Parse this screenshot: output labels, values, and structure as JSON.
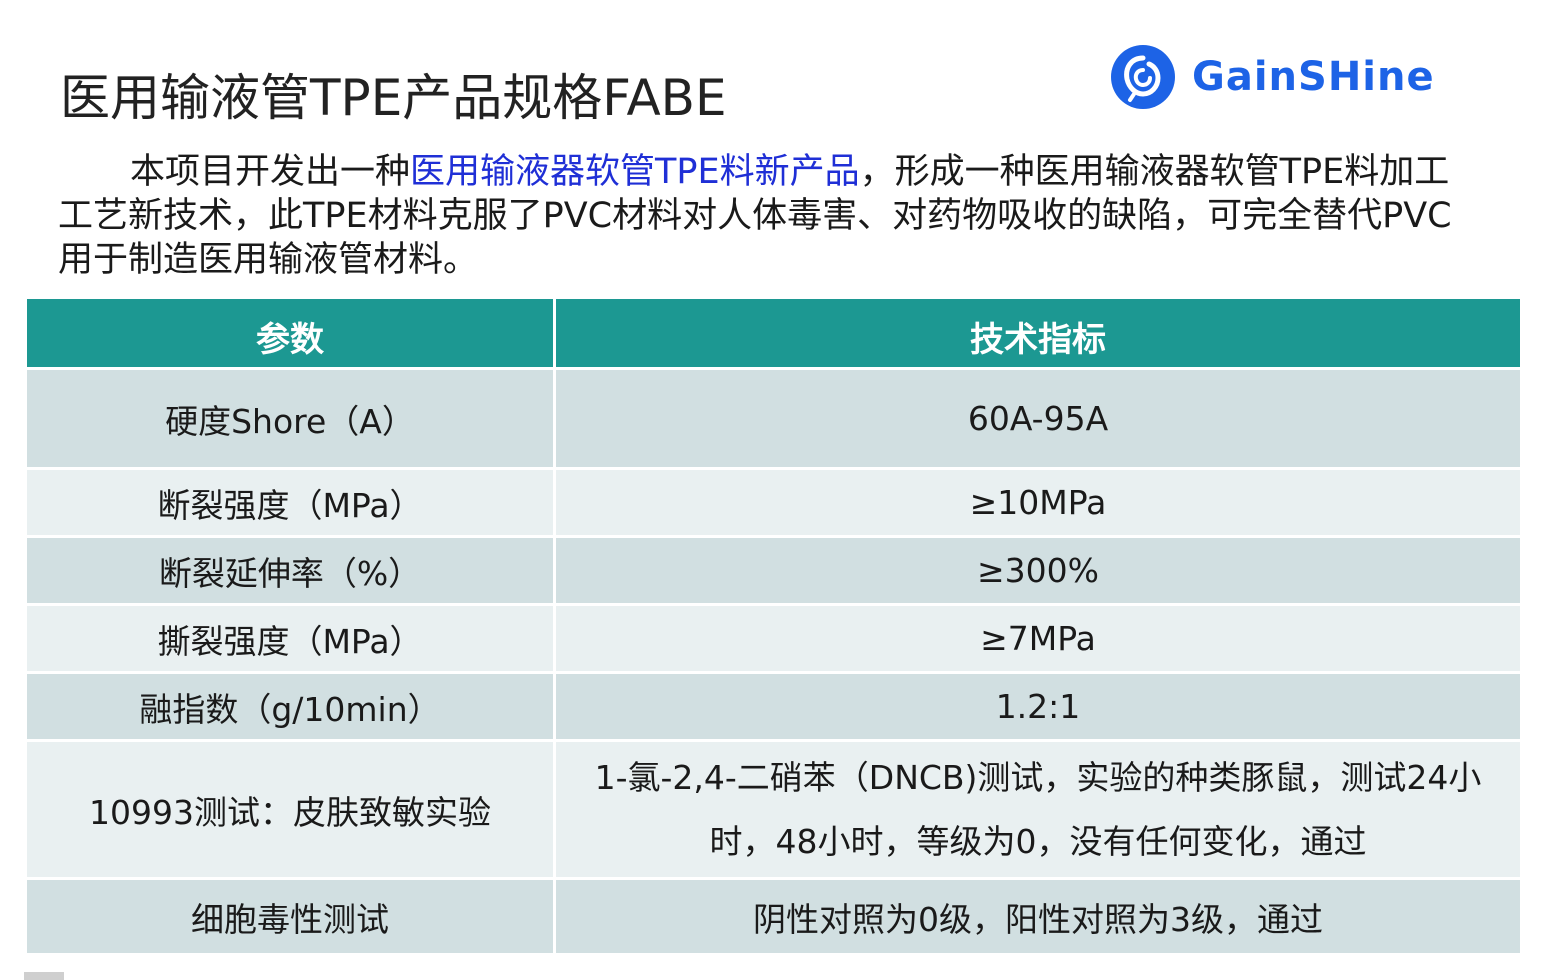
{
  "slide": {
    "title": "医用输液管TPE产品规格FABE",
    "logo": {
      "text": "GainSHine",
      "icon": "gainshine-logo-icon",
      "brand_color": "#1d63e6"
    },
    "intro": {
      "part1": "本项目开发出一种",
      "highlight": "医用输液器软管TPE料新产品",
      "part2": "，形成一种医用输液器软管TPE料加工工艺新技术，此TPE材料克服了PVC材料对人体毒害、对药物吸收的缺陷，可完全替代PVC用于制造医用输液管材料。",
      "highlight_color": "#1f2fd6"
    },
    "table": {
      "header_color": "#1c9892",
      "row_colors": [
        "#d1dfe1",
        "#e9f0f1"
      ],
      "headers": [
        "参数",
        "技术指标"
      ],
      "rows": [
        {
          "param": "硬度Shore（A）",
          "value": "60A-95A"
        },
        {
          "param": "断裂强度（MPa）",
          "value": "≥10MPa"
        },
        {
          "param": "断裂延伸率（%）",
          "value": "≥300%"
        },
        {
          "param": "撕裂强度（MPa）",
          "value": "≥7MPa"
        },
        {
          "param": "融指数（g/10min）",
          "value": "1.2:1"
        },
        {
          "param": "10993测试：皮肤致敏实验",
          "value": "1-氯-2,4-二硝苯（DNCB)测试，实验的种类豚鼠，测试24小时，48小时，等级为0，没有任何变化，通过"
        },
        {
          "param": "细胞毒性测试",
          "value": "阴性对照为0级，阳性对照为3级，通过"
        }
      ]
    }
  }
}
